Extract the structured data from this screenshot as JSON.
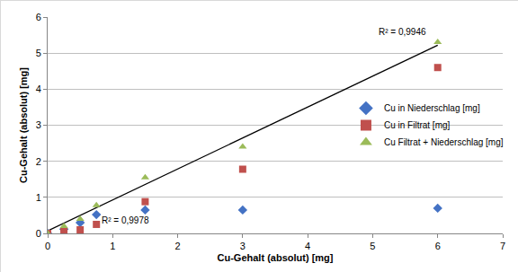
{
  "chart_data": {
    "type": "scatter",
    "x_label": "Cu-Gehalt (absolut) [mg]",
    "y_label": "Cu-Gehalt (absolut) [mg]",
    "x": [
      0,
      0.25,
      0.5,
      0.75,
      1.5,
      3,
      6
    ],
    "series": [
      {
        "name": "Cu in Niederschlag [mg]",
        "color": "#4472c4",
        "marker": "diamond",
        "values": [
          0,
          0.12,
          0.3,
          0.52,
          0.65,
          0.65,
          0.7
        ]
      },
      {
        "name": "Cu in Filtrat [mg]",
        "color": "#c0504d",
        "marker": "square",
        "values": [
          0,
          0.05,
          0.1,
          0.25,
          0.88,
          1.78,
          4.6
        ]
      },
      {
        "name": "Cu Filtrat + Niederschlag [mg]",
        "color": "#9bbb59",
        "marker": "triangle-up",
        "values": [
          0,
          0.2,
          0.4,
          0.78,
          1.55,
          2.4,
          5.3
        ]
      },
      {
        "type": "line",
        "color": "#000000",
        "line_style": "solid",
        "x": [
          0,
          6
        ],
        "values": [
          0.07,
          5.22
        ]
      }
    ],
    "annotations": [
      "R² = 0,9946",
      "R² = 0,9978"
    ],
    "xlim": [
      0,
      7
    ],
    "xticks": [
      0,
      1,
      2,
      3,
      4,
      5,
      6,
      7
    ],
    "ylim": [
      0,
      6
    ],
    "yticks": [
      0,
      1,
      2,
      3,
      4,
      5,
      6
    ],
    "grid": true,
    "legend": "right"
  }
}
